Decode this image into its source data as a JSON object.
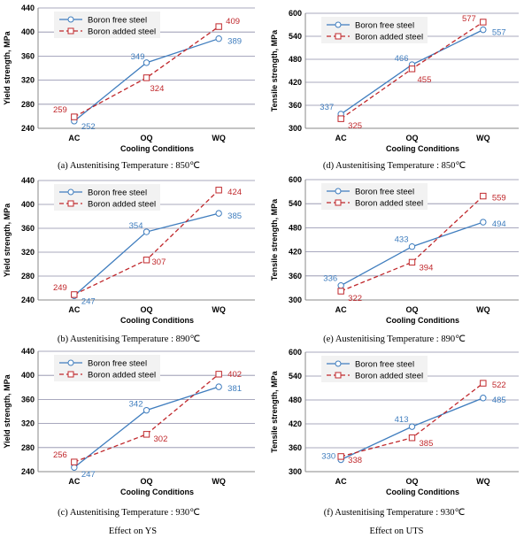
{
  "colors": {
    "free": "#3f7dbe",
    "added": "#c0282c",
    "grid": "#8c8ca8"
  },
  "footer": {
    "left": "Effect on YS",
    "right": "Effect on UTS"
  },
  "chart_data": [
    {
      "type": "line",
      "categories": [
        "AC",
        "OQ",
        "WQ"
      ],
      "xlabel": "Cooling Conditions",
      "ylabel": "Yield strength, MPa",
      "ylim": [
        240,
        440
      ],
      "yticks": [
        240,
        280,
        320,
        360,
        400,
        440
      ],
      "caption": "(a) Austenitising Temperature : 850℃",
      "series": [
        {
          "name": "Boron free steel",
          "values": [
            252,
            349,
            389
          ]
        },
        {
          "name": "Boron added steel",
          "values": [
            259,
            324,
            409
          ]
        }
      ]
    },
    {
      "type": "line",
      "categories": [
        "AC",
        "OQ",
        "WQ"
      ],
      "xlabel": "Cooling Conditions",
      "ylabel": "Yield strength, MPa",
      "ylim": [
        240,
        440
      ],
      "yticks": [
        240,
        280,
        320,
        360,
        400,
        440
      ],
      "caption": "(b) Austenitising Temperature : 890℃",
      "series": [
        {
          "name": "Boron free steel",
          "values": [
            247,
            354,
            385
          ]
        },
        {
          "name": "Boron added steel",
          "values": [
            249,
            307,
            424
          ]
        }
      ]
    },
    {
      "type": "line",
      "categories": [
        "AC",
        "OQ",
        "WQ"
      ],
      "xlabel": "Cooling Conditions",
      "ylabel": "Yield strength, MPa",
      "ylim": [
        240,
        440
      ],
      "yticks": [
        240,
        280,
        320,
        360,
        400,
        440
      ],
      "caption": "(c) Austenitising Temperature : 930℃",
      "series": [
        {
          "name": "Boron free steel",
          "values": [
            247,
            342,
            381
          ]
        },
        {
          "name": "Boron added steel",
          "values": [
            256,
            302,
            402
          ]
        }
      ]
    },
    {
      "type": "line",
      "categories": [
        "AC",
        "OQ",
        "WQ"
      ],
      "xlabel": "Cooling Conditions",
      "ylabel": "Tensile strength, MPa",
      "ylim": [
        300,
        600
      ],
      "yticks": [
        300,
        360,
        420,
        480,
        540,
        600
      ],
      "caption": "(d) Austenitising Temperature : 850℃",
      "series": [
        {
          "name": "Boron free steel",
          "values": [
            337,
            466,
            557
          ]
        },
        {
          "name": "Boron added steel",
          "values": [
            325,
            455,
            577
          ]
        }
      ]
    },
    {
      "type": "line",
      "categories": [
        "AC",
        "OQ",
        "WQ"
      ],
      "xlabel": "Cooling Conditions",
      "ylabel": "Tensile strength, MPa",
      "ylim": [
        300,
        600
      ],
      "yticks": [
        300,
        360,
        420,
        480,
        540,
        600
      ],
      "caption": "(e) Austenitising Temperature : 890℃",
      "series": [
        {
          "name": "Boron free steel",
          "values": [
            336,
            433,
            494
          ]
        },
        {
          "name": "Boron added steel",
          "values": [
            322,
            394,
            559
          ]
        }
      ]
    },
    {
      "type": "line",
      "categories": [
        "AC",
        "OQ",
        "WQ"
      ],
      "xlabel": "Cooling Conditions",
      "ylabel": "Tensile strength, MPa",
      "ylim": [
        300,
        600
      ],
      "yticks": [
        300,
        360,
        420,
        480,
        540,
        600
      ],
      "caption": "(f) Austenitising Temperature : 930℃",
      "series": [
        {
          "name": "Boron free steel",
          "values": [
            330,
            413,
            485
          ]
        },
        {
          "name": "Boron added steel",
          "values": [
            338,
            385,
            522
          ]
        }
      ]
    }
  ]
}
